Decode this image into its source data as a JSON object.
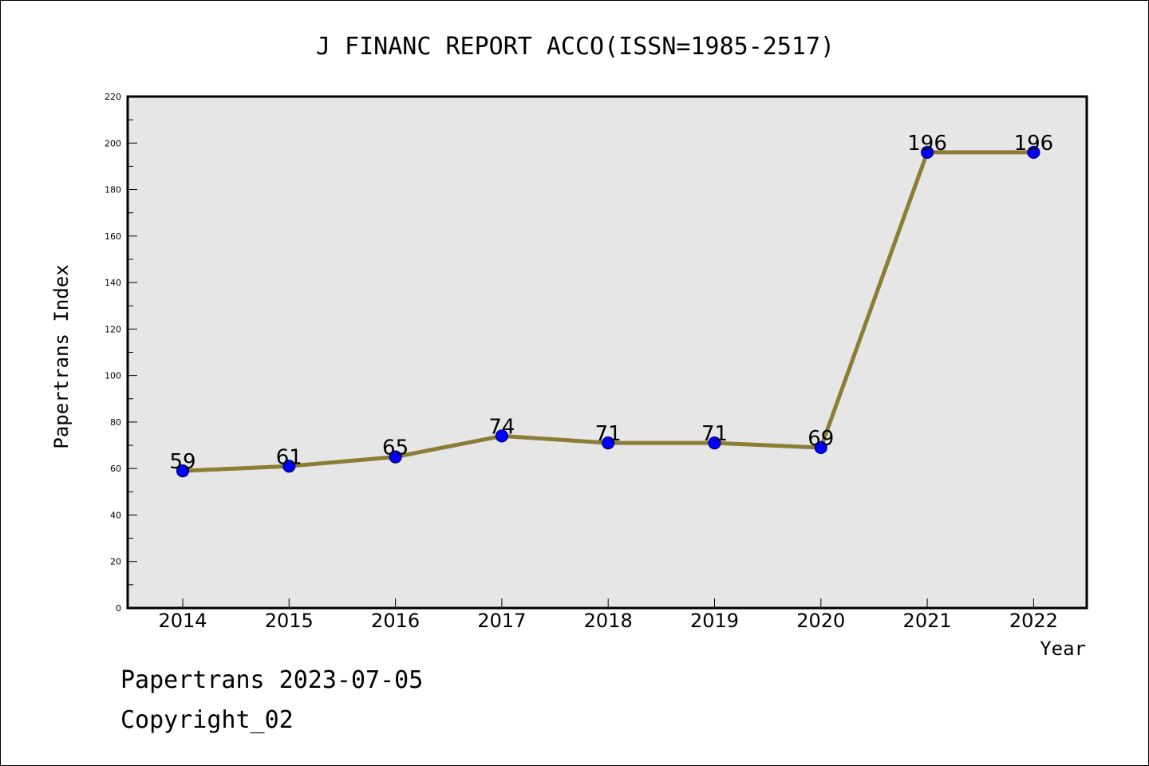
{
  "chart_data": {
    "type": "line",
    "title": "J FINANC REPORT ACCO(ISSN=1985-2517)",
    "xlabel": "Year",
    "ylabel": "Papertrans Index",
    "categories": [
      "2014",
      "2015",
      "2016",
      "2017",
      "2018",
      "2019",
      "2020",
      "2021",
      "2022"
    ],
    "series": [
      {
        "values": [
          59,
          61,
          65,
          74,
          71,
          71,
          69,
          196,
          196
        ]
      }
    ],
    "data_labels": [
      "59",
      "61",
      "65",
      "74",
      "71",
      "71",
      "69",
      "196",
      "196"
    ],
    "ylim": [
      0,
      220
    ],
    "y_ticks": [
      "0",
      "20",
      "40",
      "60",
      "80",
      "100",
      "120",
      "140",
      "160",
      "180",
      "200",
      "220"
    ],
    "grid": false,
    "legend": "none",
    "colors": {
      "line": "#8b7d35",
      "marker_fill": "#0000ff",
      "marker_edge": "#00006e",
      "plot_background": "#e6e6e6"
    }
  },
  "footer": {
    "date_text": "Papertrans 2023-07-05",
    "copyright_text": "Copyright_02"
  }
}
